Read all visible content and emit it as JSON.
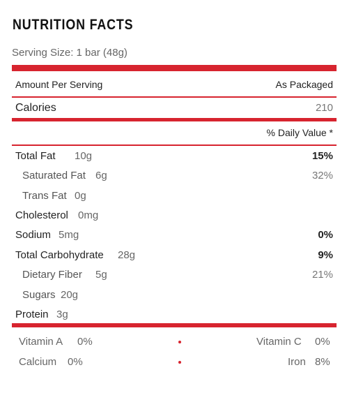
{
  "header": {
    "title": "NUTRITION FACTS",
    "serving_size": "Serving Size: 1 bar (48g)"
  },
  "table": {
    "amount_label": "Amount Per Serving",
    "column_label": "As Packaged",
    "calories": {
      "label": "Calories",
      "value": "210"
    },
    "daily_value_label": "% Daily Value *",
    "rows": [
      {
        "name": "Total Fat",
        "amount": "10g",
        "dv": "15%"
      },
      {
        "name": "Saturated Fat",
        "amount": "6g",
        "dv": "32%"
      },
      {
        "name": "Trans Fat",
        "amount": "0g"
      },
      {
        "name": "Cholesterol",
        "amount": "0mg"
      },
      {
        "name": "Sodium",
        "amount": "5mg",
        "dv": "0%"
      },
      {
        "name": "Total Carbohydrate",
        "amount": "28g",
        "dv": "9%"
      },
      {
        "name": "Dietary Fiber",
        "amount": "5g",
        "dv": "21%"
      },
      {
        "name": "Sugars",
        "amount": "20g"
      },
      {
        "name": "Protein",
        "amount": "3g"
      }
    ]
  },
  "vitamins": [
    [
      {
        "name": "Vitamin A",
        "value": "0%"
      },
      {
        "name": "Vitamin C",
        "value": "0%"
      }
    ],
    [
      {
        "name": "Calcium",
        "value": "0%"
      },
      {
        "name": "Iron",
        "value": "8%"
      }
    ]
  ]
}
